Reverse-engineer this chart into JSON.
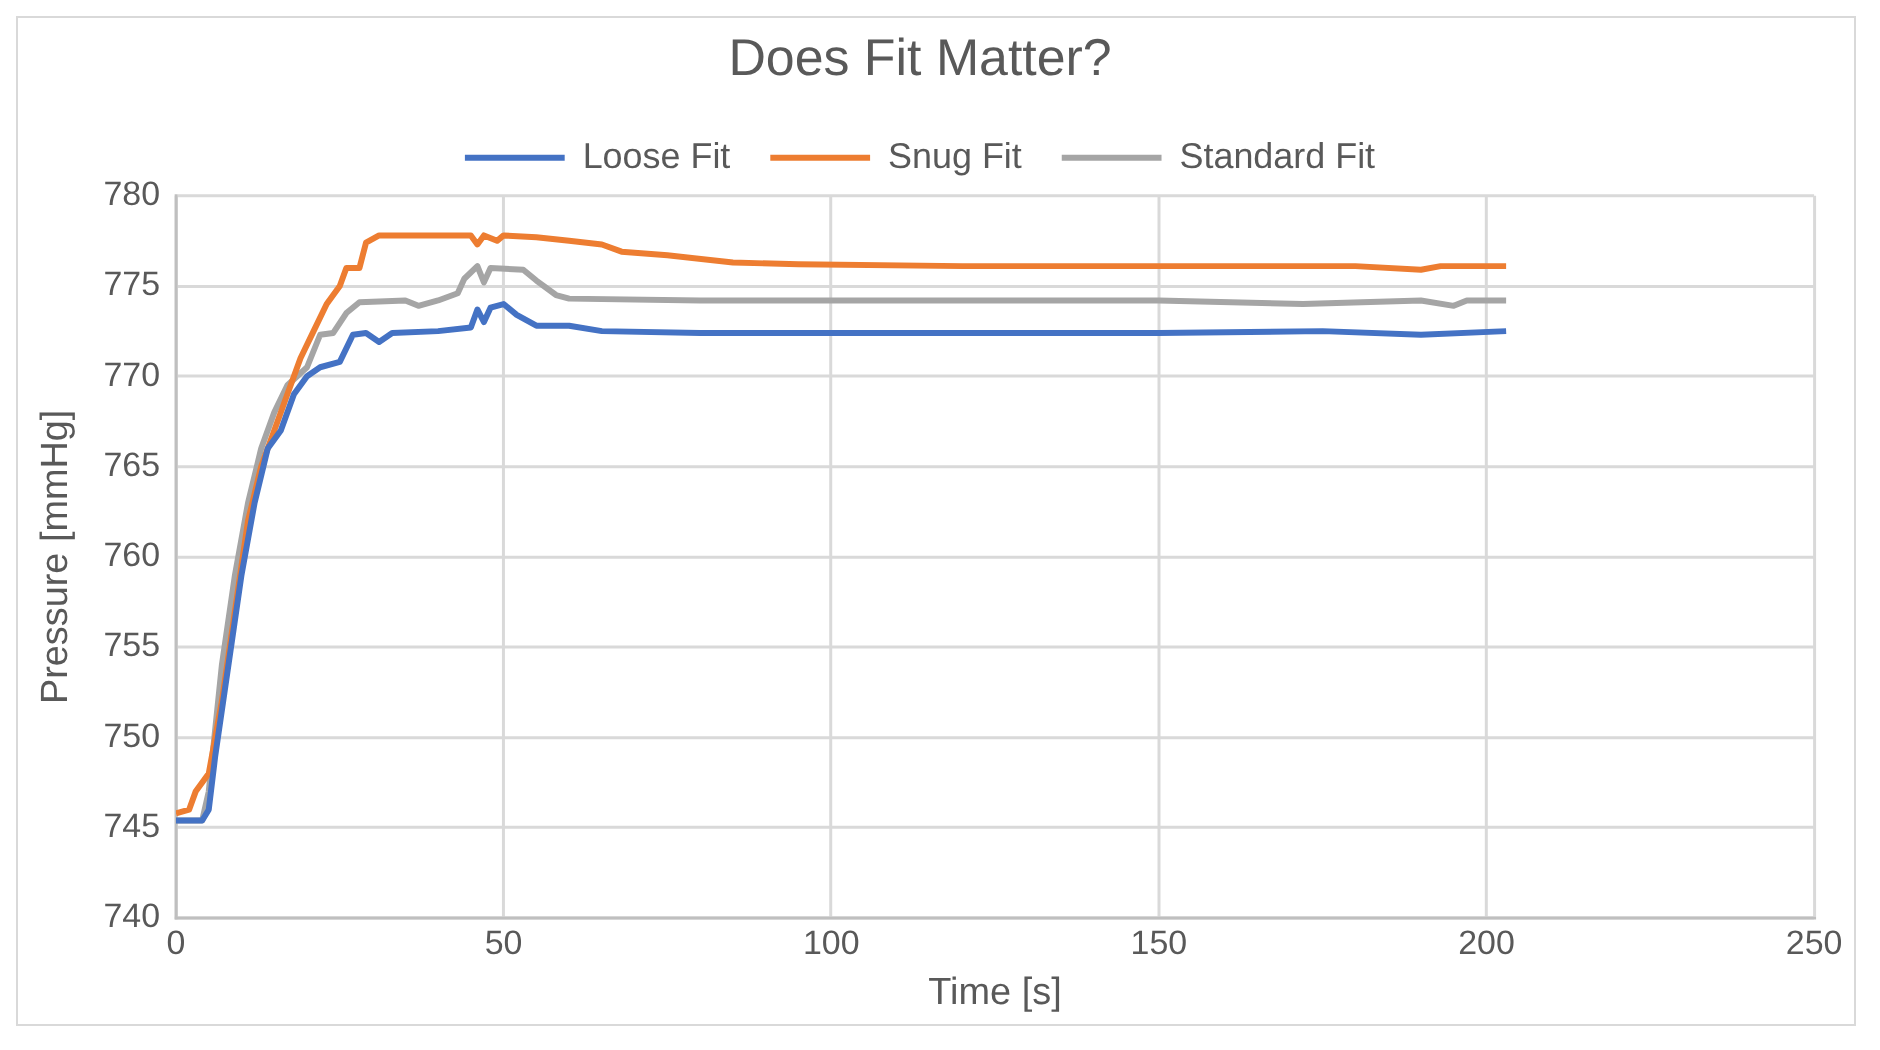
{
  "chart_data": {
    "type": "line",
    "title": "Does Fit Matter?",
    "xlabel": "Time [s]",
    "ylabel": "Pressure [mmHg]",
    "xlim": [
      0,
      250
    ],
    "xticks": [
      0,
      50,
      100,
      150,
      200,
      250
    ],
    "ylim": [
      740,
      780
    ],
    "yticks": [
      740,
      745,
      750,
      755,
      760,
      765,
      770,
      775,
      780
    ],
    "grid": true,
    "legend": "top",
    "marker": "none",
    "line_style": "solid",
    "series": [
      {
        "name": "Loose Fit",
        "color": "#4472c4",
        "x": [
          0,
          4,
          5,
          6,
          8,
          10,
          12,
          14,
          16,
          18,
          20,
          22,
          25,
          27,
          29,
          31,
          33,
          40,
          45,
          46,
          47,
          48,
          50,
          52,
          55,
          60,
          65,
          80,
          100,
          150,
          175,
          190,
          203
        ],
        "values": [
          745.4,
          745.4,
          746,
          749,
          754,
          759,
          763,
          766,
          767,
          769,
          770,
          770.5,
          770.8,
          772.3,
          772.4,
          771.9,
          772.4,
          772.5,
          772.7,
          773.7,
          773,
          773.8,
          774,
          773.4,
          772.8,
          772.8,
          772.5,
          772.4,
          772.4,
          772.4,
          772.5,
          772.3,
          772.5
        ]
      },
      {
        "name": "Snug Fit",
        "color": "#ed7d31",
        "x": [
          0,
          2,
          3,
          5,
          7,
          9,
          11,
          13,
          15,
          17,
          19,
          21,
          23,
          25,
          26,
          28,
          29,
          31,
          45,
          46,
          47,
          49,
          50,
          55,
          60,
          65,
          68,
          75,
          85,
          95,
          120,
          180,
          190,
          193,
          203
        ],
        "values": [
          745.8,
          746,
          747,
          748,
          752,
          757,
          762,
          765,
          767,
          769,
          771,
          772.5,
          774,
          775,
          776,
          776,
          777.4,
          777.8,
          777.8,
          777.3,
          777.8,
          777.5,
          777.8,
          777.7,
          777.5,
          777.3,
          776.9,
          776.7,
          776.3,
          776.2,
          776.1,
          776.1,
          775.9,
          776.1,
          776.1
        ]
      },
      {
        "name": "Standard Fit",
        "color": "#a5a5a5",
        "x": [
          0,
          4,
          5,
          7,
          9,
          11,
          13,
          15,
          17,
          20,
          22,
          24,
          26,
          28,
          35,
          37,
          40,
          43,
          44,
          46,
          47,
          48,
          53,
          55,
          58,
          60,
          80,
          150,
          172,
          190,
          195,
          197,
          203
        ],
        "values": [
          745.4,
          745.4,
          747,
          754,
          759,
          763,
          766,
          768,
          769.5,
          770.5,
          772.3,
          772.4,
          773.5,
          774.1,
          774.2,
          773.9,
          774.2,
          774.6,
          775.4,
          776.1,
          775.2,
          776,
          775.9,
          775.3,
          774.5,
          774.3,
          774.2,
          774.2,
          774,
          774.2,
          773.9,
          774.2,
          774.2
        ]
      }
    ]
  }
}
